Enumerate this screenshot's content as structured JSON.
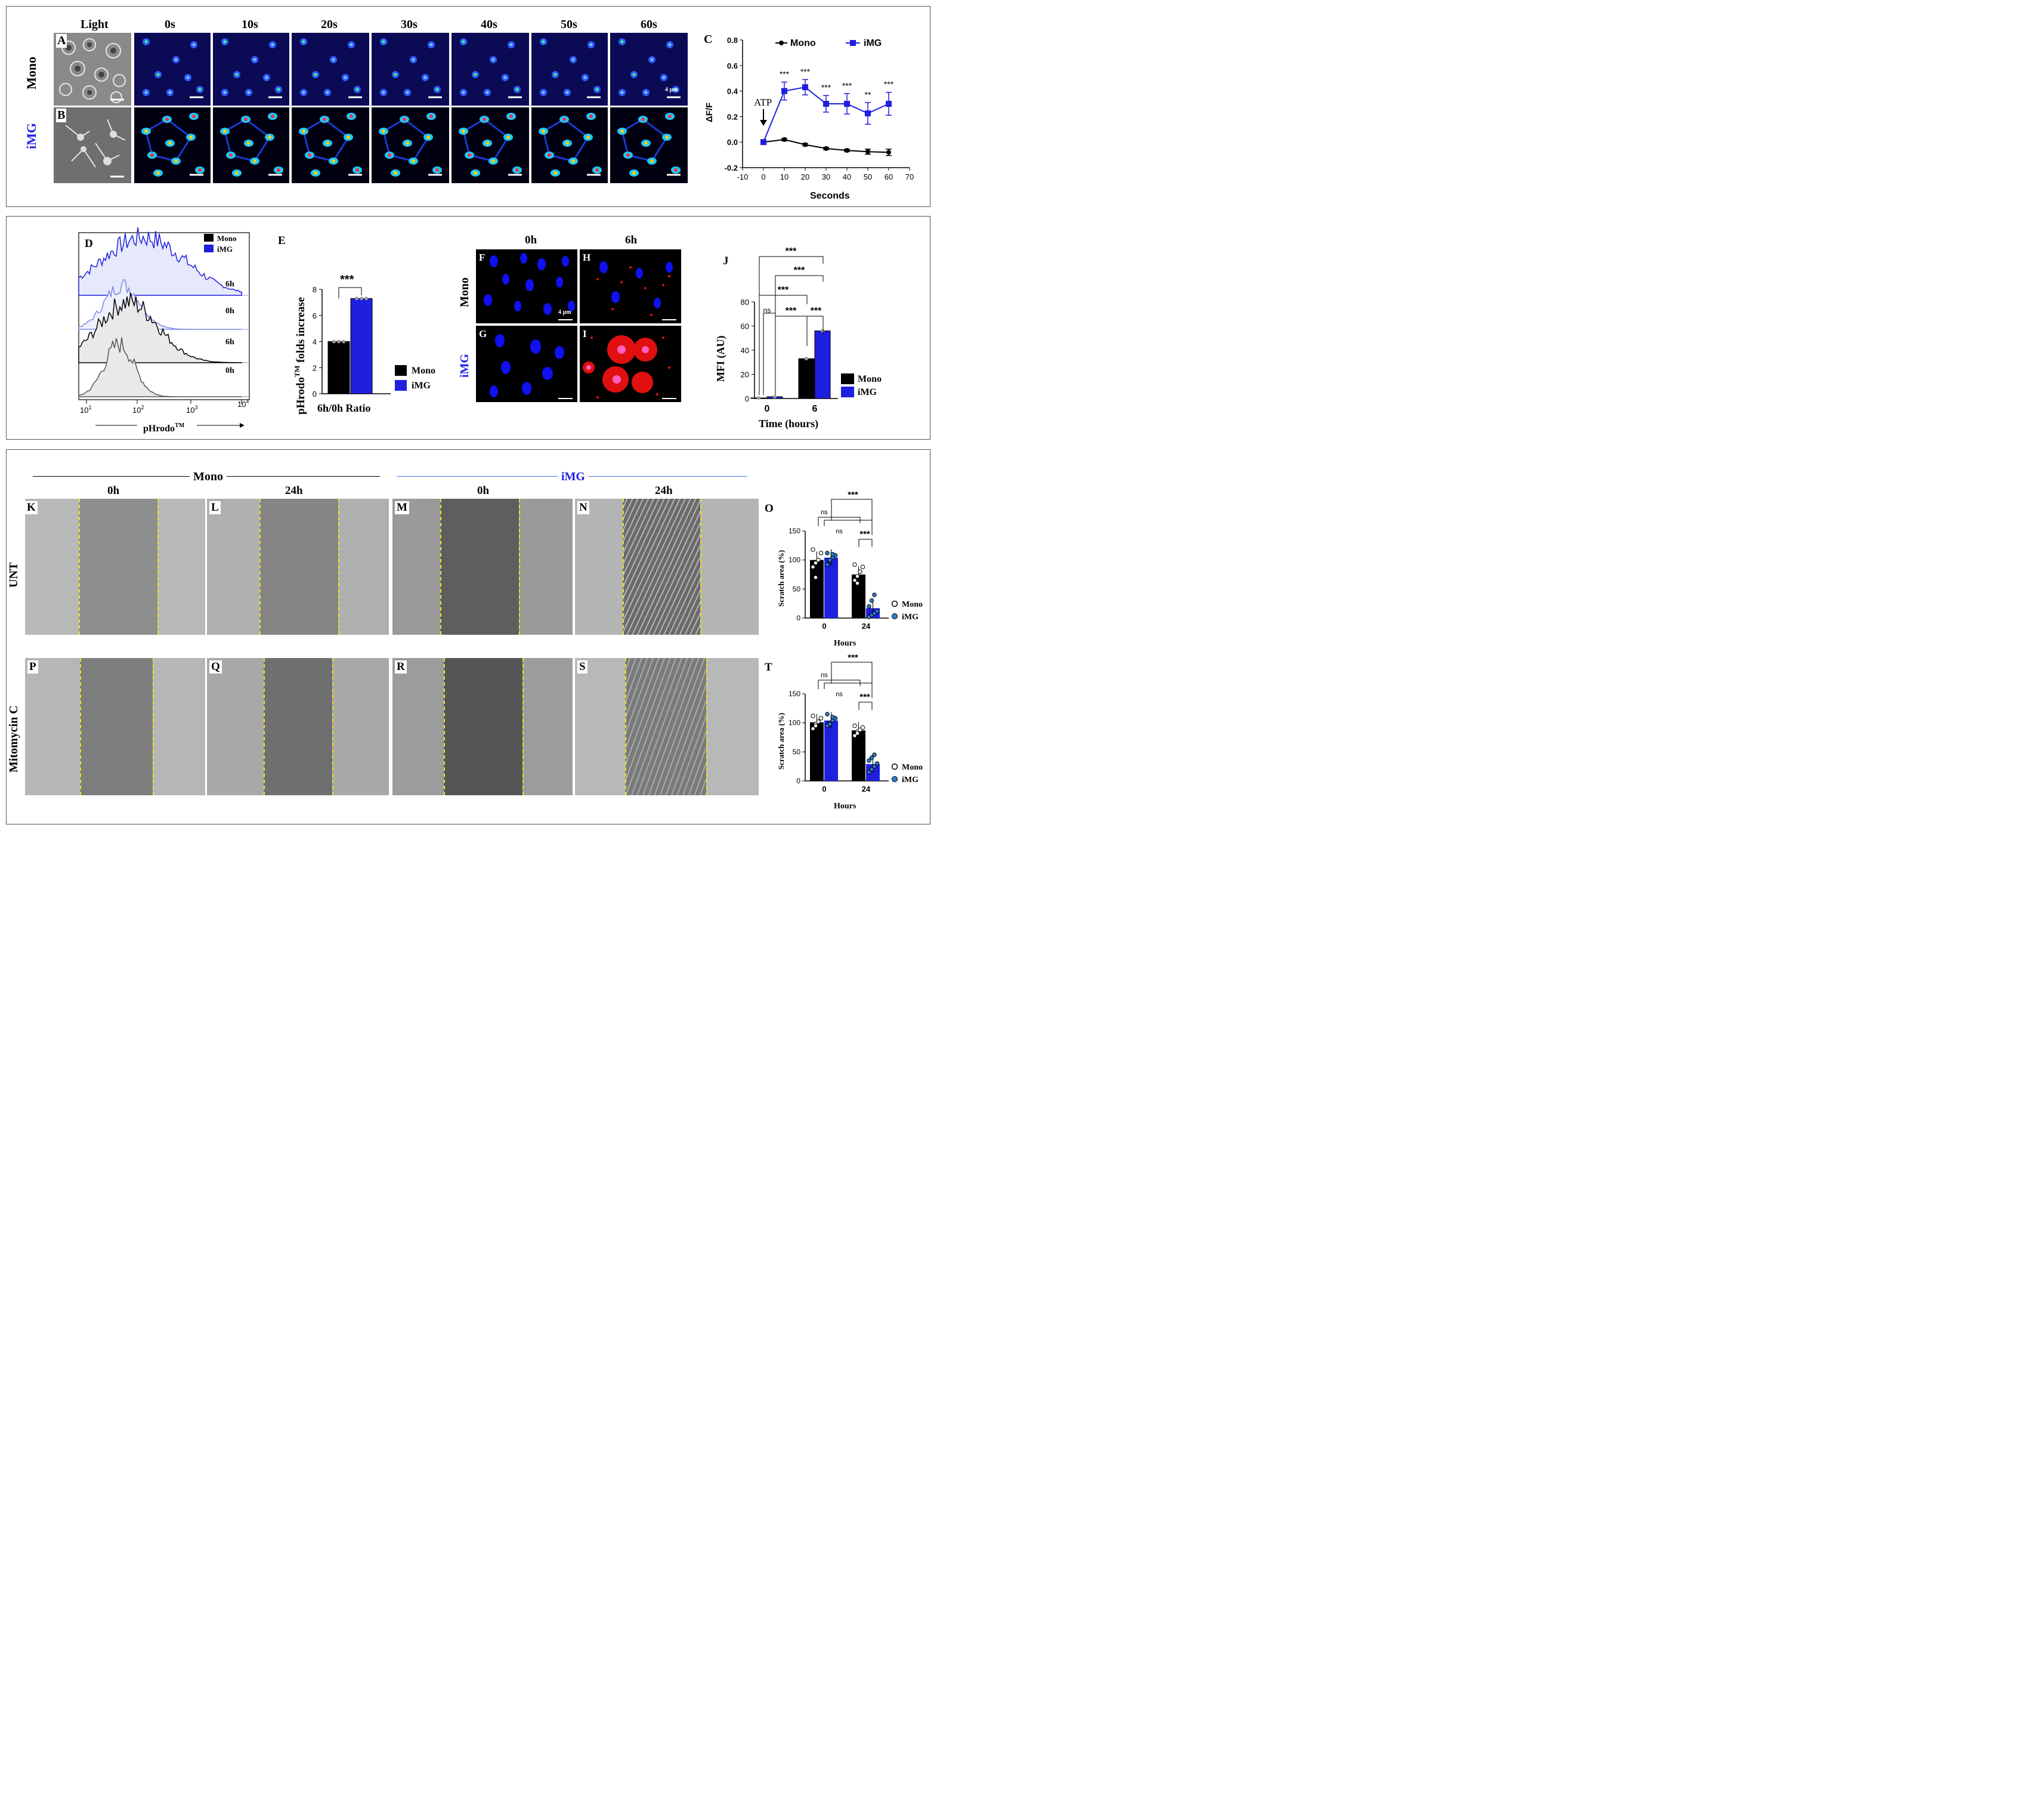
{
  "panelA_header": {
    "timepoints": [
      "Light",
      "0s",
      "10s",
      "20s",
      "30s",
      "40s",
      "50s",
      "60s"
    ],
    "row_labels": [
      "Mono",
      "iMG"
    ],
    "panel_letters": [
      "A",
      "B"
    ],
    "scale_label": "4 µm"
  },
  "colors": {
    "mono": "#000000",
    "img": "#1f1fe0",
    "img_light": "#9aa2f0",
    "fluor_bg": "#0a0a55",
    "hist_fill_blue": "#e6e8fb",
    "hist_fill_gray": "#e9e9e9",
    "red_stain": "#e01010",
    "scratch_line": "#f0e020",
    "gray_bg": "#8c8c8c"
  },
  "panelC": {
    "letter": "C",
    "legend": [
      "Mono",
      "iMG"
    ],
    "ylabel": "ΔF/F",
    "xlabel": "Seconds",
    "annotation": "ATP",
    "xticks": [
      "-10",
      "0",
      "10",
      "20",
      "30",
      "40",
      "50",
      "60",
      "70"
    ],
    "yticks": [
      "-0.2",
      "0.0",
      "0.2",
      "0.4",
      "0.6",
      "0.8"
    ],
    "sig": [
      "***",
      "***",
      "***",
      "***",
      "**",
      "***"
    ]
  },
  "panelD": {
    "letter": "D",
    "legend": [
      "Mono",
      "iMG"
    ],
    "row_labels": [
      "6h",
      "0h",
      "6h",
      "0h"
    ],
    "xlabel": "pHrodo",
    "xlabel_sup": "TM",
    "xticks": [
      "1",
      "2",
      "3",
      "4"
    ],
    "xtick_base": "10"
  },
  "panelE": {
    "letter": "E",
    "ylabel": "pHrodo",
    "ylabel_sup": "TM",
    "ylabel_rest": " folds increase",
    "xlabel": "6h/0h Ratio",
    "yticks": [
      "0",
      "2",
      "4",
      "6",
      "8"
    ],
    "sig": "***",
    "legend": [
      "Mono",
      "iMG"
    ]
  },
  "panelFI": {
    "col_headers": [
      "0h",
      "6h"
    ],
    "letters": [
      "F",
      "H",
      "G",
      "I"
    ],
    "row_labels": [
      "Mono",
      "iMG"
    ],
    "scale_label": "4 µm"
  },
  "panelJ": {
    "letter": "J",
    "ylabel": "MFI (AU)",
    "xlabel": "Time (hours)",
    "yticks": [
      "0",
      "20",
      "40",
      "60",
      "80"
    ],
    "categories": [
      "0",
      "6"
    ],
    "ns": "ns",
    "sig": "***",
    "legend": [
      "Mono",
      "iMG"
    ]
  },
  "panelScratch": {
    "group_labels": [
      "Mono",
      "iMG"
    ],
    "col_headers": [
      "0h",
      "24h",
      "0h",
      "24h"
    ],
    "row_labels": [
      "UNT",
      "Mitomycin C"
    ],
    "letters_top": [
      "K",
      "L",
      "M",
      "N"
    ],
    "letters_bottom": [
      "P",
      "Q",
      "R",
      "S"
    ]
  },
  "panelO": {
    "letter": "O",
    "ylabel": "Scratch area (%)",
    "xlabel": "Hours",
    "yticks": [
      "0",
      "50",
      "100",
      "150"
    ],
    "categories": [
      "0",
      "24"
    ],
    "ns": "ns",
    "sig": "***",
    "legend": [
      "Mono",
      "iMG"
    ]
  },
  "panelT": {
    "letter": "T",
    "ylabel": "Scratch area (%)",
    "xlabel": "Hours",
    "yticks": [
      "0",
      "50",
      "100",
      "150"
    ],
    "categories": [
      "0",
      "24"
    ],
    "ns": "ns",
    "sig": "***",
    "legend": [
      "Mono",
      "iMG"
    ]
  },
  "chart_data": [
    {
      "type": "line",
      "panel": "C",
      "x": [
        0,
        10,
        20,
        30,
        40,
        50,
        60
      ],
      "series": [
        {
          "name": "Mono",
          "values": [
            0.0,
            0.02,
            -0.02,
            -0.05,
            -0.065,
            -0.075,
            -0.08
          ],
          "err": [
            0,
            0.01,
            0.01,
            0.01,
            0.01,
            0.02,
            0.025
          ]
        },
        {
          "name": "iMG",
          "values": [
            0.0,
            0.4,
            0.43,
            0.3,
            0.3,
            0.225,
            0.3
          ],
          "err": [
            0,
            0.07,
            0.06,
            0.065,
            0.08,
            0.085,
            0.09
          ]
        }
      ],
      "xlim": [
        -10,
        70
      ],
      "ylim": [
        -0.2,
        0.8
      ],
      "xlabel": "Seconds",
      "ylabel": "ΔF/F"
    },
    {
      "type": "bar",
      "panel": "E",
      "categories": [
        "6h/0h Ratio"
      ],
      "series": [
        {
          "name": "Mono",
          "values": [
            4.0
          ]
        },
        {
          "name": "iMG",
          "values": [
            7.3
          ]
        }
      ],
      "ylim": [
        0,
        8
      ],
      "ylabel": "pHrodoTM folds increase"
    },
    {
      "type": "bar",
      "panel": "J",
      "categories": [
        "0",
        "6"
      ],
      "series": [
        {
          "name": "Mono",
          "values": [
            0.5,
            33
          ]
        },
        {
          "name": "iMG",
          "values": [
            1.5,
            56
          ]
        }
      ],
      "ylim": [
        0,
        80
      ],
      "xlabel": "Time (hours)",
      "ylabel": "MFI (AU)"
    },
    {
      "type": "bar",
      "panel": "O",
      "categories": [
        "0",
        "24"
      ],
      "series": [
        {
          "name": "Mono",
          "values": [
            100,
            75
          ],
          "points": [
            [
              88,
              95,
              100,
              112,
              118,
              70
            ],
            [
              65,
              72,
              80,
              88,
              92,
              60
            ]
          ]
        },
        {
          "name": "iMG",
          "values": [
            104,
            17
          ],
          "points": [
            [
              92,
              98,
              104,
              108,
              112,
              100,
              110
            ],
            [
              2,
              5,
              8,
              12,
              20,
              30,
              40
            ]
          ]
        }
      ],
      "ylim": [
        0,
        150
      ],
      "xlabel": "Hours",
      "ylabel": "Scratch area (%)"
    },
    {
      "type": "bar",
      "panel": "T",
      "categories": [
        "0",
        "24"
      ],
      "series": [
        {
          "name": "Mono",
          "values": [
            101,
            87
          ],
          "points": [
            [
              90,
              98,
              102,
              108,
              112,
              95
            ],
            [
              78,
              85,
              88,
              92,
              95,
              82
            ]
          ]
        },
        {
          "name": "iMG",
          "values": [
            104,
            29
          ],
          "points": [
            [
              95,
              100,
              104,
              108,
              115,
              98,
              110
            ],
            [
              15,
              20,
              25,
              30,
              35,
              40,
              45
            ]
          ]
        }
      ],
      "ylim": [
        0,
        150
      ],
      "xlabel": "Hours",
      "ylabel": "Scratch area (%)"
    }
  ]
}
